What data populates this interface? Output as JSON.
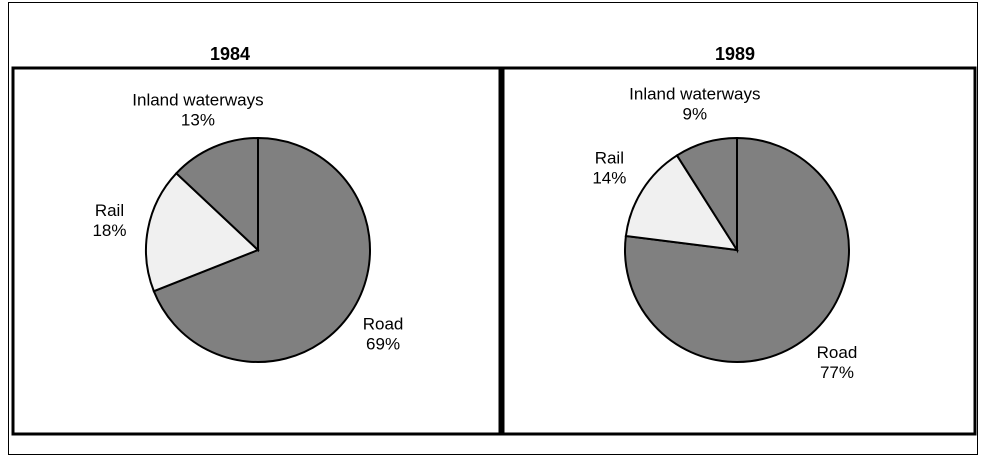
{
  "chart_data": [
    {
      "type": "pie",
      "title": "1984",
      "categories": [
        "Road",
        "Rail",
        "Inland waterways"
      ],
      "values": [
        69,
        18,
        13
      ],
      "value_labels": [
        "69%",
        "18%",
        "13%"
      ],
      "colors": [
        "#808080",
        "#f0f0f0",
        "#808080"
      ]
    },
    {
      "type": "pie",
      "title": "1989",
      "categories": [
        "Road",
        "Rail",
        "Inland waterways"
      ],
      "values": [
        77,
        14,
        9
      ],
      "value_labels": [
        "77%",
        "14%",
        "9%"
      ],
      "colors": [
        "#808080",
        "#f0f0f0",
        "#808080"
      ]
    }
  ]
}
